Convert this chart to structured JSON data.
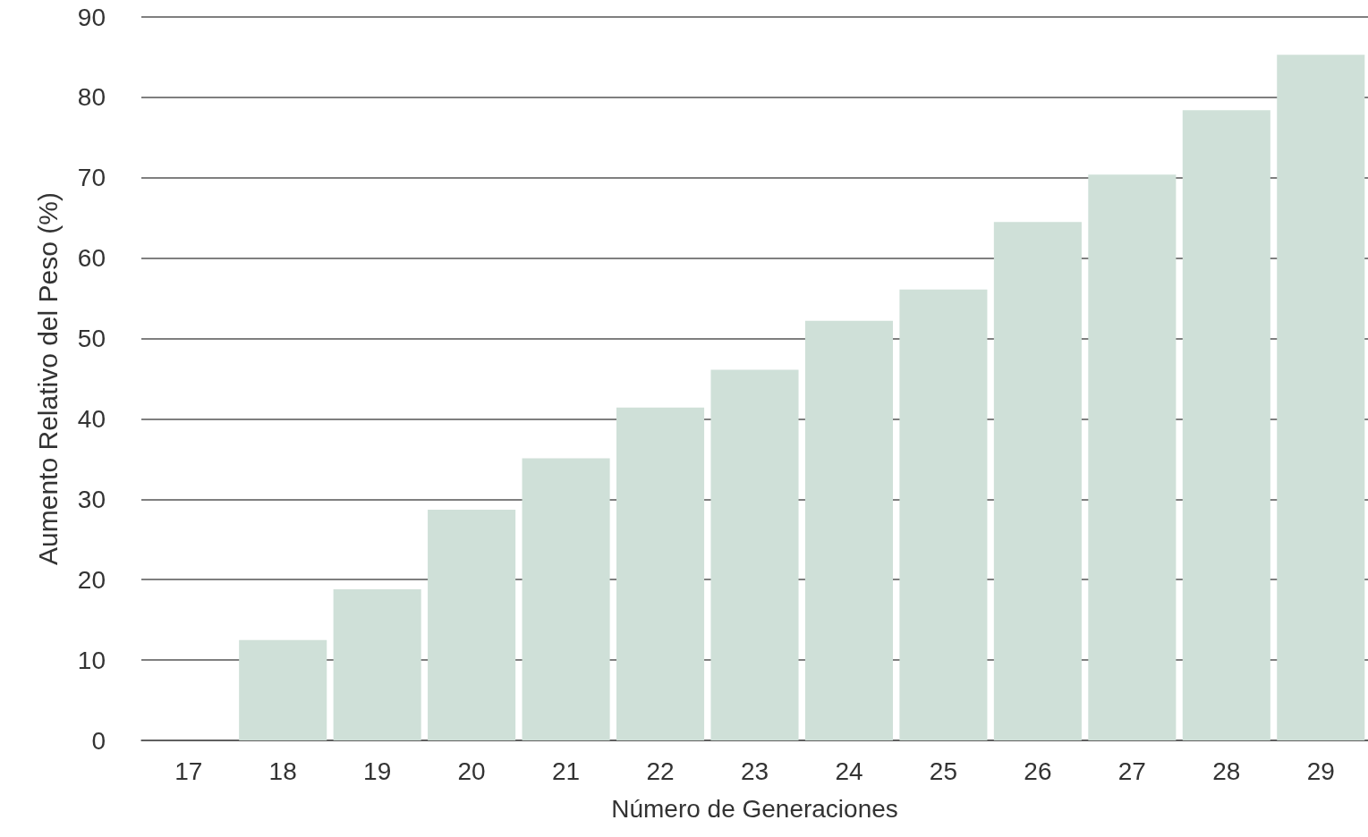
{
  "chart_data": {
    "type": "bar",
    "xlabel": "Número de Generaciones",
    "ylabel": "Aumento Relativo del Peso (%)",
    "categories": [
      "17",
      "18",
      "19",
      "20",
      "21",
      "22",
      "23",
      "24",
      "25",
      "26",
      "27",
      "28",
      "29"
    ],
    "values": [
      0,
      12.5,
      18.8,
      28.7,
      35.1,
      41.4,
      46.1,
      52.2,
      56.1,
      64.5,
      70.4,
      78.4,
      85.3
    ],
    "color": "#cfe0d8",
    "ylim": [
      0,
      90
    ],
    "yticks": [
      0,
      10,
      20,
      30,
      40,
      50,
      60,
      70,
      80,
      90
    ],
    "grid": "y"
  }
}
